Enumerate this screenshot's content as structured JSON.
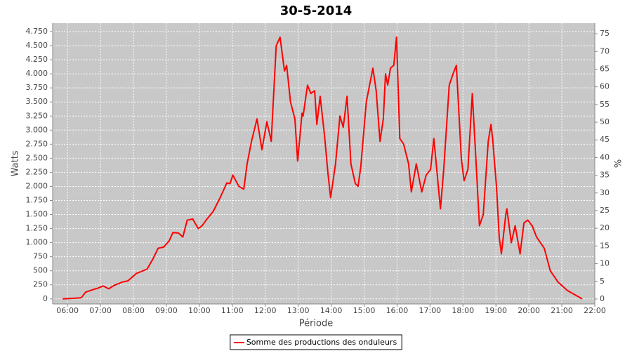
{
  "chart_data": {
    "type": "line",
    "title": "30-5-2014",
    "x_label": "Période",
    "y_label": "Watts",
    "y2_label": "%",
    "x": [
      "05:51",
      "06:10",
      "06:25",
      "06:33",
      "06:45",
      "06:55",
      "07:05",
      "07:15",
      "07:25",
      "07:40",
      "07:50",
      "08:05",
      "08:15",
      "08:25",
      "08:35",
      "08:45",
      "08:55",
      "09:05",
      "09:12",
      "09:22",
      "09:30",
      "09:38",
      "09:48",
      "09:58",
      "10:05",
      "10:14",
      "10:25",
      "10:38",
      "10:50",
      "10:56",
      "11:01",
      "11:12",
      "11:21",
      "11:27",
      "11:35",
      "11:45",
      "11:54",
      "12:03",
      "12:11",
      "12:13",
      "12:20",
      "12:27",
      "12:35",
      "12:39",
      "12:46",
      "12:54",
      "12:59",
      "13:07",
      "13:09",
      "13:17",
      "13:23",
      "13:30",
      "13:34",
      "13:40",
      "13:48",
      "13:54",
      "13:59",
      "14:08",
      "14:16",
      "14:22",
      "14:29",
      "14:36",
      "14:44",
      "14:49",
      "14:54",
      "15:04",
      "15:16",
      "15:22",
      "15:29",
      "15:35",
      "15:39",
      "15:43",
      "15:48",
      "15:54",
      "15:59",
      "16:05",
      "16:12",
      "16:21",
      "16:26",
      "16:35",
      "16:45",
      "16:53",
      "17:01",
      "17:07",
      "17:19",
      "17:25",
      "17:35",
      "17:42",
      "17:48",
      "17:57",
      "18:02",
      "18:09",
      "18:17",
      "18:24",
      "18:30",
      "18:37",
      "18:46",
      "18:51",
      "18:54",
      "19:01",
      "19:06",
      "19:10",
      "19:18",
      "19:20",
      "19:28",
      "19:35",
      "19:44",
      "19:51",
      "19:58",
      "20:06",
      "20:14",
      "20:28",
      "20:39",
      "20:53",
      "21:10",
      "21:28",
      "21:37"
    ],
    "series": [
      {
        "name": "Somme des productions des onduleurs",
        "color": "#ff0000",
        "values": [
          0,
          10,
          20,
          120,
          160,
          190,
          230,
          180,
          240,
          300,
          320,
          450,
          490,
          530,
          700,
          900,
          920,
          1030,
          1180,
          1170,
          1100,
          1400,
          1420,
          1250,
          1300,
          1420,
          1550,
          1800,
          2060,
          2050,
          2200,
          2000,
          1950,
          2400,
          2800,
          3200,
          2650,
          3150,
          2800,
          3200,
          4500,
          4650,
          4050,
          4150,
          3500,
          3200,
          2450,
          3300,
          3250,
          3800,
          3650,
          3700,
          3100,
          3600,
          2900,
          2250,
          1800,
          2400,
          3250,
          3050,
          3600,
          2400,
          2050,
          2000,
          2350,
          3500,
          4100,
          3700,
          2800,
          3200,
          4000,
          3800,
          4100,
          4150,
          4650,
          2850,
          2750,
          2400,
          1900,
          2400,
          1900,
          2200,
          2300,
          2850,
          1600,
          2300,
          3800,
          4000,
          4150,
          2500,
          2100,
          2300,
          3650,
          2400,
          1300,
          1500,
          2800,
          3100,
          2850,
          2000,
          1100,
          800,
          1500,
          1600,
          1000,
          1300,
          800,
          1350,
          1400,
          1300,
          1100,
          900,
          500,
          300,
          150,
          50,
          0
        ]
      }
    ],
    "xlim": [
      "05:33",
      "22:00"
    ],
    "xticks": [
      "06:00",
      "07:00",
      "08:00",
      "09:00",
      "10:00",
      "11:00",
      "12:00",
      "13:00",
      "14:00",
      "15:00",
      "16:00",
      "17:00",
      "18:00",
      "19:00",
      "20:00",
      "21:00",
      "22:00"
    ],
    "ylim": [
      -90,
      4900
    ],
    "yticks": [
      0,
      250,
      500,
      750,
      {
        "value": 1000,
        "label": "1.000"
      },
      {
        "value": 1250,
        "label": "1.250"
      },
      {
        "value": 1500,
        "label": "1.500"
      },
      {
        "value": 1750,
        "label": "1.750"
      },
      {
        "value": 2000,
        "label": "2.000"
      },
      {
        "value": 2250,
        "label": "2.250"
      },
      {
        "value": 2500,
        "label": "2.500"
      },
      {
        "value": 2750,
        "label": "2.750"
      },
      {
        "value": 3000,
        "label": "3.000"
      },
      {
        "value": 3250,
        "label": "3.250"
      },
      {
        "value": 3500,
        "label": "3.500"
      },
      {
        "value": 3750,
        "label": "3.750"
      },
      {
        "value": 4000,
        "label": "4.000"
      },
      {
        "value": 4250,
        "label": "4.250"
      },
      {
        "value": 4500,
        "label": "4.500"
      },
      {
        "value": 4750,
        "label": "4.750"
      }
    ],
    "y2lim": [
      -1.4,
      78
    ],
    "y2ticks": [
      0,
      5,
      10,
      15,
      20,
      25,
      30,
      35,
      40,
      45,
      50,
      55,
      60,
      65,
      70,
      75
    ],
    "grid": true,
    "legend": "bottom"
  }
}
